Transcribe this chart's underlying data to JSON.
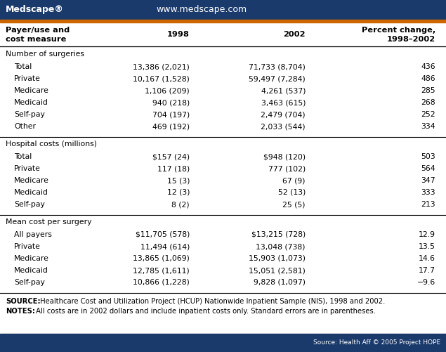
{
  "header_bg": "#1a3a6b",
  "header_text_color": "#ffffff",
  "medscape_text": "Medscape®",
  "website_text": "www.medscape.com",
  "accent_color": "#cc6600",
  "footer_bg": "#1a3a6b",
  "footer_text": "Source: Health Aff © 2005 Project HOPE",
  "sections": [
    {
      "section_title": "Number of surgeries",
      "rows": [
        [
          "  Total",
          "13,386 (2,021)",
          "71,733 (8,704)",
          "436"
        ],
        [
          "  Private",
          "10,167 (1,528)",
          "59,497 (7,284)",
          "486"
        ],
        [
          "  Medicare",
          "1,106 (209)",
          "4,261 (537)",
          "285"
        ],
        [
          "  Medicaid",
          "940 (218)",
          "3,463 (615)",
          "268"
        ],
        [
          "  Self-pay",
          "704 (197)",
          "2,479 (704)",
          "252"
        ],
        [
          "  Other",
          "469 (192)",
          "2,033 (544)",
          "334"
        ]
      ]
    },
    {
      "section_title": "Hospital costs (millions)",
      "rows": [
        [
          "  Total",
          "$157 (24)",
          "$948 (120)",
          "503"
        ],
        [
          "  Private",
          "117 (18)",
          "777 (102)",
          "564"
        ],
        [
          "  Medicare",
          "15 (3)",
          "67 (9)",
          "347"
        ],
        [
          "  Medicaid",
          "12 (3)",
          "52 (13)",
          "333"
        ],
        [
          "  Self-pay",
          "8 (2)",
          "25 (5)",
          "213"
        ]
      ]
    },
    {
      "section_title": "Mean cost per surgery",
      "rows": [
        [
          "  All payers",
          "$11,705 (578)",
          "$13,215 (728)",
          "12.9"
        ],
        [
          "  Private",
          "11,494 (614)",
          "13,048 (738)",
          "13.5"
        ],
        [
          "  Medicare",
          "13,865 (1,069)",
          "15,903 (1,073)",
          "14.6"
        ],
        [
          "  Medicaid",
          "12,785 (1,611)",
          "15,051 (2,581)",
          "17.7"
        ],
        [
          "  Self-pay",
          "10,866 (1,228)",
          "9,828 (1,097)",
          "−9.6"
        ]
      ]
    }
  ],
  "source_bold": "SOURCE:",
  "source_rest": " Healthcare Cost and Utilization Project (HCUP) Nationwide Inpatient Sample (NIS), 1998 and 2002.",
  "notes_bold": "NOTES:",
  "notes_rest": " All costs are in 2002 dollars and include inpatient costs only. Standard errors are in parentheses.",
  "bg_color": "#ffffff",
  "text_color": "#000000",
  "divider_color": "#000000"
}
